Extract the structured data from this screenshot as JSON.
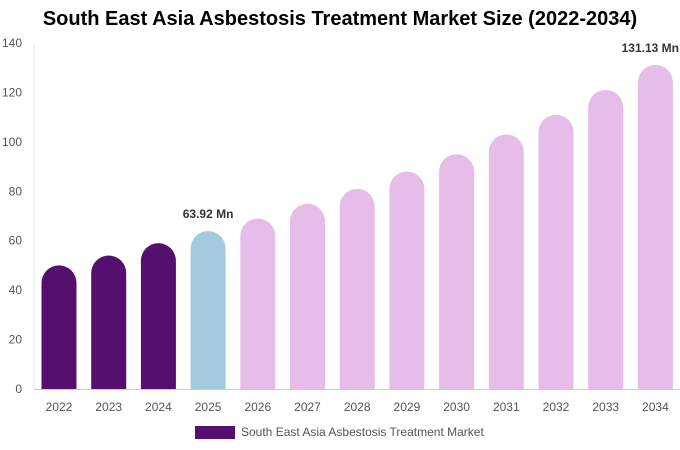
{
  "chart_data": {
    "type": "bar",
    "title": "South East Asia Asbestosis Treatment Market Size (2022-2034)",
    "categories": [
      "2022",
      "2023",
      "2024",
      "2025",
      "2026",
      "2027",
      "2028",
      "2029",
      "2030",
      "2031",
      "2032",
      "2033",
      "2034"
    ],
    "series": [
      {
        "name": "South East Asia Asbestosis Treatment Market",
        "values": [
          50,
          54,
          59,
          63.92,
          69,
          75,
          81,
          88,
          95,
          103,
          111,
          121,
          131.13
        ]
      }
    ],
    "bar_colors": [
      "#55106f",
      "#55106f",
      "#55106f",
      "#a4cade",
      "#e6bde8",
      "#e6bde8",
      "#e6bde8",
      "#e6bde8",
      "#e6bde8",
      "#e6bde8",
      "#e6bde8",
      "#e6bde8",
      "#e6bde8"
    ],
    "data_labels": [
      {
        "index": 3,
        "text": "63.92 Mn"
      },
      {
        "index": 12,
        "text": "131.13 Mn"
      }
    ],
    "ylim": [
      0,
      140
    ],
    "yticks": [
      "0",
      "20",
      "40",
      "60",
      "80",
      "100",
      "120",
      "140"
    ],
    "grid": false,
    "legend": {
      "position": "bottom-center",
      "label": "South East Asia Asbestosis Treatment Market",
      "color": "#55106f"
    }
  }
}
